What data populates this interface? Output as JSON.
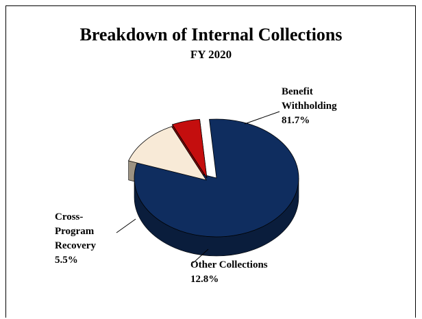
{
  "chart_data": {
    "type": "pie",
    "title": "Breakdown of Internal Collections",
    "subtitle": "FY 2020",
    "slices": [
      {
        "name": "Benefit Withholding",
        "value": 81.7,
        "value_label": "81.7%",
        "color": "#0f2d5f",
        "side_color": "#0a1d3c"
      },
      {
        "name": "Other Collections",
        "value": 12.8,
        "value_label": "12.8%",
        "color": "#f8ead7",
        "side_color": "#9c9282"
      },
      {
        "name": "Cross-Program Recovery",
        "value": 5.5,
        "value_label": "5.5%",
        "color": "#c40e0e",
        "side_color": "#7d0a0a"
      }
    ],
    "labels": {
      "benefit": {
        "line1": "Benefit",
        "line2": "Withholding",
        "pct": "81.7%"
      },
      "other": {
        "line1": "Other Collections",
        "pct": "12.8%"
      },
      "cross": {
        "line1": "Cross-",
        "line2": "Program",
        "line3": "Recovery",
        "pct": "5.5%"
      }
    },
    "exploded": [
      "Other Collections",
      "Cross-Program Recovery"
    ],
    "three_d": true,
    "legend": "none"
  }
}
